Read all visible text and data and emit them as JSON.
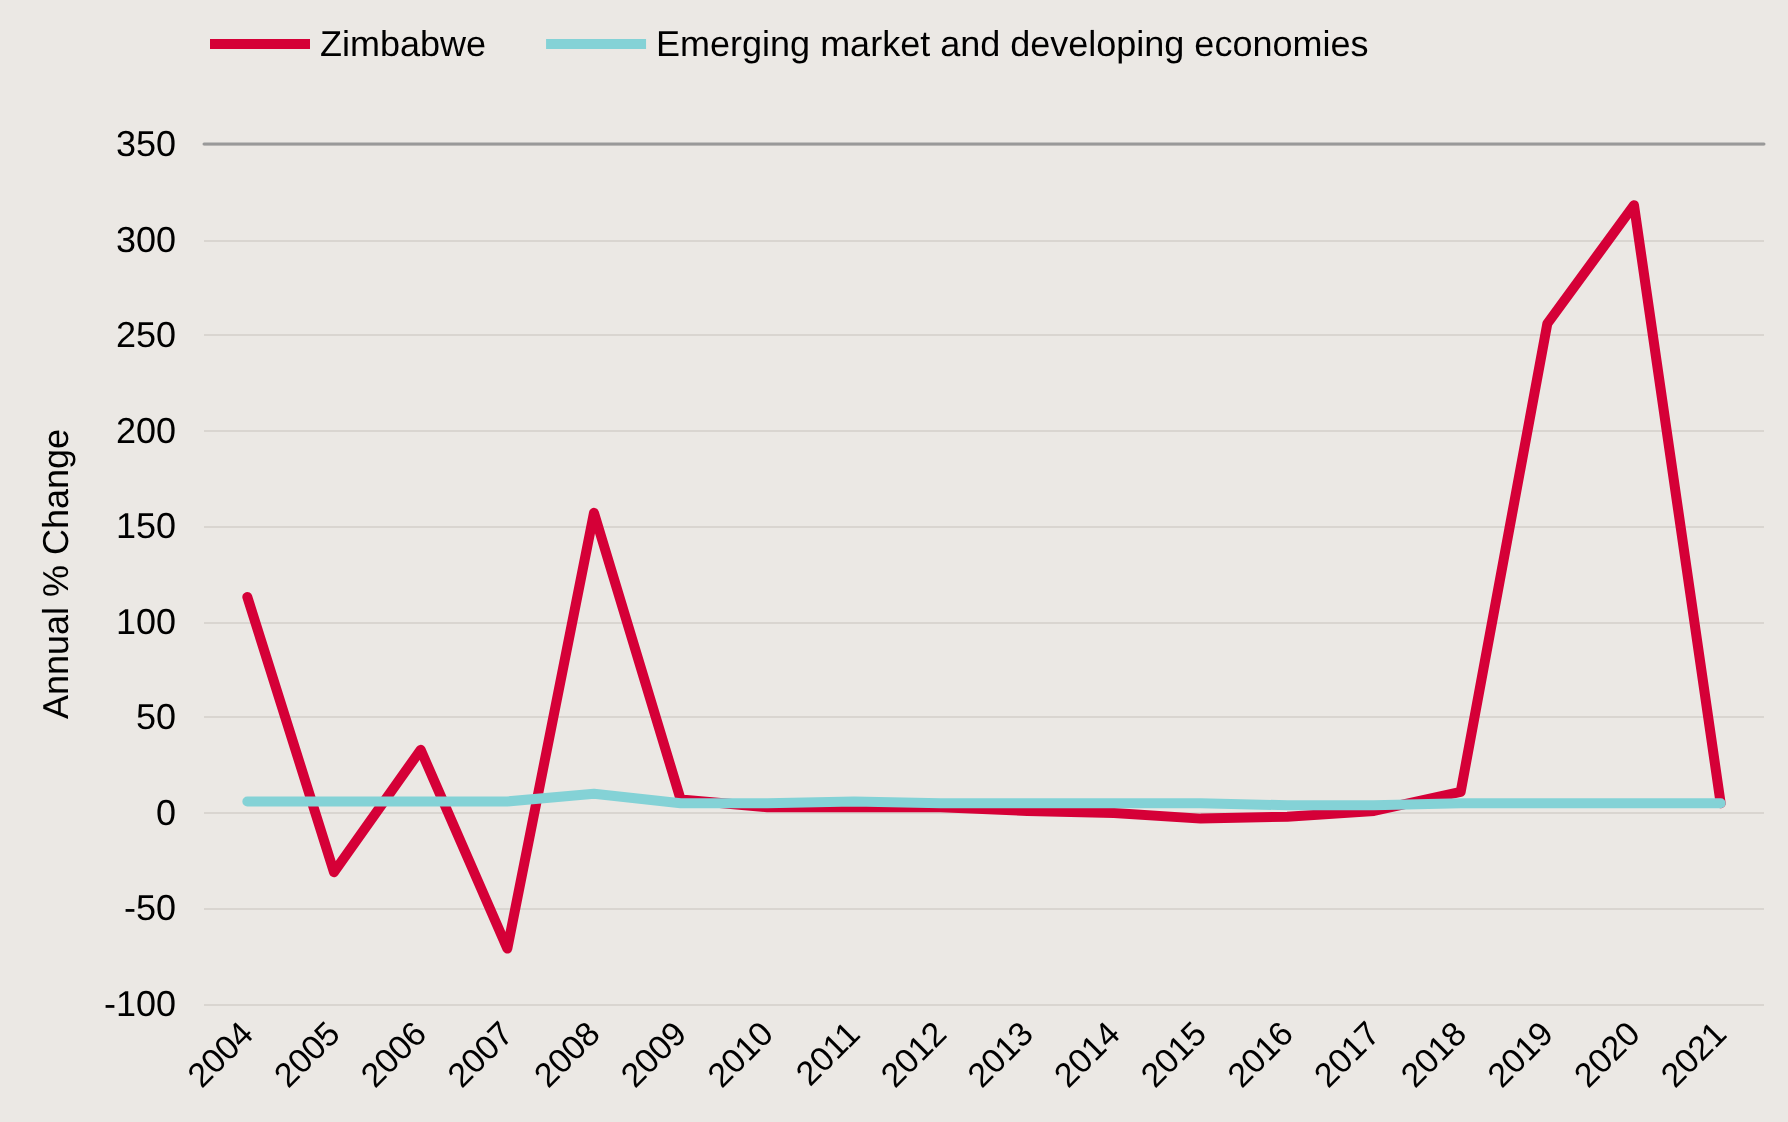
{
  "chart_data": {
    "type": "line",
    "ylabel": "Annual % Change",
    "categories": [
      "2004",
      "2005",
      "2006",
      "2007",
      "2008",
      "2009",
      "2010",
      "2011",
      "2012",
      "2013",
      "2014",
      "2015",
      "2016",
      "2017",
      "2018",
      "2019",
      "2020",
      "2021"
    ],
    "series": [
      {
        "name": "Zimbabwe",
        "color": "#d50037",
        "values": [
          113,
          -31,
          33,
          -71,
          157,
          7,
          3,
          3,
          3,
          1,
          0,
          -3,
          -2,
          1,
          11,
          256,
          318,
          5
        ]
      },
      {
        "name": "Emerging market and developing economies",
        "color": "#84d2d6",
        "values": [
          6,
          6,
          6,
          6,
          10,
          5,
          5,
          6,
          5,
          5,
          5,
          5,
          4,
          4,
          5,
          5,
          5,
          5
        ]
      }
    ],
    "ylim": [
      -100,
      350
    ],
    "yticks": [
      -100,
      -50,
      0,
      50,
      100,
      150,
      200,
      250,
      300,
      350
    ],
    "grid": "y",
    "legend": "top left",
    "marker": "none",
    "line_style": "solid"
  }
}
